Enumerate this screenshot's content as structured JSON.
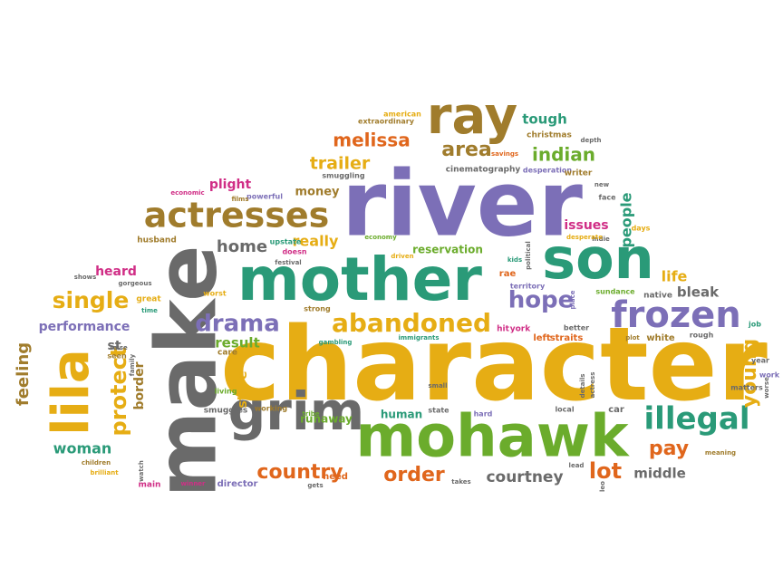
{
  "colors": {
    "purple": "#7c6fb7",
    "teal": "#2a9a78",
    "gold": "#e6ad14",
    "brown": "#a07c2c",
    "gray": "#6a6a6a",
    "orange": "#e0661c",
    "magenta": "#d02e86",
    "green": "#6bac2c",
    "background": "#ffffff"
  },
  "words": [
    {
      "text": "character",
      "color": "gold"
    },
    {
      "text": "river",
      "color": "purple"
    },
    {
      "text": "make",
      "color": "gray"
    },
    {
      "text": "mother",
      "color": "teal"
    },
    {
      "text": "mohawk",
      "color": "green"
    },
    {
      "text": "son",
      "color": "teal"
    },
    {
      "text": "grim",
      "color": "gray"
    },
    {
      "text": "lila",
      "color": "gold"
    },
    {
      "text": "ray",
      "color": "brown"
    },
    {
      "text": "actresses",
      "color": "brown"
    },
    {
      "text": "frozen",
      "color": "purple"
    },
    {
      "text": "illegal",
      "color": "teal"
    },
    {
      "text": "abandoned",
      "color": "gold"
    },
    {
      "text": "drama",
      "color": "purple"
    },
    {
      "text": "hope",
      "color": "purple"
    },
    {
      "text": "protect",
      "color": "gold"
    },
    {
      "text": "single",
      "color": "gold"
    },
    {
      "text": "country",
      "color": "orange"
    },
    {
      "text": "order",
      "color": "orange"
    },
    {
      "text": "lot",
      "color": "orange"
    },
    {
      "text": "pay",
      "color": "orange"
    },
    {
      "text": "young",
      "color": "gold"
    },
    {
      "text": "courtney",
      "color": "gray"
    },
    {
      "text": "area",
      "color": "brown"
    },
    {
      "text": "melissa",
      "color": "orange"
    },
    {
      "text": "indian",
      "color": "green"
    },
    {
      "text": "trailer",
      "color": "gold"
    },
    {
      "text": "home",
      "color": "gray"
    },
    {
      "text": "really",
      "color": "gold"
    },
    {
      "text": "people",
      "color": "teal"
    },
    {
      "text": "feeling",
      "color": "brown"
    },
    {
      "text": "woman",
      "color": "teal"
    },
    {
      "text": "performance",
      "color": "purple"
    },
    {
      "text": "result",
      "color": "green"
    },
    {
      "text": "store",
      "color": "gold"
    },
    {
      "text": "border",
      "color": "brown"
    },
    {
      "text": "life",
      "color": "gold"
    },
    {
      "text": "bleak",
      "color": "gray"
    },
    {
      "text": "middle",
      "color": "gray"
    },
    {
      "text": "tough",
      "color": "teal"
    },
    {
      "text": "money",
      "color": "brown"
    },
    {
      "text": "plight",
      "color": "magenta"
    },
    {
      "text": "issues",
      "color": "magenta"
    },
    {
      "text": "heard",
      "color": "magenta"
    },
    {
      "text": "reservation",
      "color": "green"
    },
    {
      "text": "st",
      "color": "gray"
    },
    {
      "text": "runaway",
      "color": "green"
    },
    {
      "text": "human",
      "color": "teal"
    },
    {
      "text": "need",
      "color": "orange"
    },
    {
      "text": "director",
      "color": "purple"
    },
    {
      "text": "smuggles",
      "color": "gray"
    },
    {
      "text": "working",
      "color": "brown"
    },
    {
      "text": "tribe",
      "color": "green"
    },
    {
      "text": "cinematography",
      "color": "gray"
    },
    {
      "text": "desperation",
      "color": "purple"
    },
    {
      "text": "extraordinary",
      "color": "brown"
    },
    {
      "text": "american",
      "color": "gold"
    },
    {
      "text": "christmas",
      "color": "brown"
    },
    {
      "text": "savings",
      "color": "orange"
    },
    {
      "text": "depth",
      "color": "gray"
    },
    {
      "text": "writer",
      "color": "brown"
    },
    {
      "text": "new",
      "color": "gray"
    },
    {
      "text": "face",
      "color": "gray"
    },
    {
      "text": "indie",
      "color": "gray"
    },
    {
      "text": "desperate",
      "color": "gold"
    },
    {
      "text": "days",
      "color": "gold"
    },
    {
      "text": "smuggling",
      "color": "gray"
    },
    {
      "text": "powerful",
      "color": "purple"
    },
    {
      "text": "economic",
      "color": "magenta"
    },
    {
      "text": "films",
      "color": "brown"
    },
    {
      "text": "husband",
      "color": "brown"
    },
    {
      "text": "upstate",
      "color": "teal"
    },
    {
      "text": "festival",
      "color": "gray"
    },
    {
      "text": "doesn",
      "color": "magenta"
    },
    {
      "text": "economy",
      "color": "green"
    },
    {
      "text": "driven",
      "color": "gold"
    },
    {
      "text": "kids",
      "color": "teal"
    },
    {
      "text": "political",
      "color": "gray"
    },
    {
      "text": "rae",
      "color": "orange"
    },
    {
      "text": "territory",
      "color": "purple"
    },
    {
      "text": "shows",
      "color": "gray"
    },
    {
      "text": "great",
      "color": "gold"
    },
    {
      "text": "worst",
      "color": "gold"
    },
    {
      "text": "strong",
      "color": "brown"
    },
    {
      "text": "native",
      "color": "gray"
    },
    {
      "text": "sundance",
      "color": "green"
    },
    {
      "text": "place",
      "color": "purple"
    },
    {
      "text": "better",
      "color": "gray"
    },
    {
      "text": "time",
      "color": "teal"
    },
    {
      "text": "gorgeous",
      "color": "gray"
    },
    {
      "text": "raise",
      "color": "gray"
    },
    {
      "text": "seen",
      "color": "brown"
    },
    {
      "text": "family",
      "color": "gray"
    },
    {
      "text": "care",
      "color": "brown"
    },
    {
      "text": "gambling",
      "color": "teal"
    },
    {
      "text": "hit",
      "color": "magenta"
    },
    {
      "text": "york",
      "color": "magenta"
    },
    {
      "text": "immigrants",
      "color": "teal"
    },
    {
      "text": "left",
      "color": "orange"
    },
    {
      "text": "straits",
      "color": "orange"
    },
    {
      "text": "plot",
      "color": "brown"
    },
    {
      "text": "white",
      "color": "brown"
    },
    {
      "text": "rough",
      "color": "gray"
    },
    {
      "text": "job",
      "color": "teal"
    },
    {
      "text": "year",
      "color": "gray"
    },
    {
      "text": "work",
      "color": "purple"
    },
    {
      "text": "matters",
      "color": "gray"
    },
    {
      "text": "worse",
      "color": "gray"
    },
    {
      "text": "living",
      "color": "green"
    },
    {
      "text": "small",
      "color": "gray"
    },
    {
      "text": "details",
      "color": "gray"
    },
    {
      "text": "actress",
      "color": "gray"
    },
    {
      "text": "state",
      "color": "gray"
    },
    {
      "text": "hard",
      "color": "purple"
    },
    {
      "text": "local",
      "color": "gray"
    },
    {
      "text": "car",
      "color": "gray"
    },
    {
      "text": "lead",
      "color": "gray"
    },
    {
      "text": "leo",
      "color": "gray"
    },
    {
      "text": "meaning",
      "color": "brown"
    },
    {
      "text": "children",
      "color": "brown"
    },
    {
      "text": "brilliant",
      "color": "gold"
    },
    {
      "text": "main",
      "color": "magenta"
    },
    {
      "text": "winner",
      "color": "magenta"
    },
    {
      "text": "watch",
      "color": "gray"
    },
    {
      "text": "gets",
      "color": "gray"
    },
    {
      "text": "takes",
      "color": "gray"
    }
  ]
}
